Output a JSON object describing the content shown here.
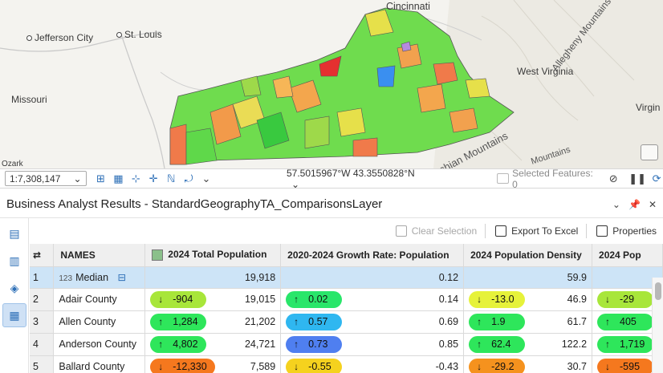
{
  "map": {
    "labels": {
      "cincinnati": "Cincinnati",
      "jefferson_city": "Jefferson City",
      "st_louis": "St. Louis",
      "missouri": "Missouri",
      "west_virginia": "West Virginia",
      "allegheny": "Allegheny Mountains",
      "virginia_partial": "Virgin",
      "appalachian_partial": "chian Mountains",
      "mountains_partial": "Mountains",
      "ozark_partial": "Ozark"
    }
  },
  "statusbar": {
    "scale": "1:7,308,147",
    "coordinates": "57.5015967°W 43.3550828°N",
    "selected_features": "Selected Features: 0"
  },
  "pane": {
    "title": "Business Analyst Results - StandardGeographyTA_ComparisonsLayer"
  },
  "toolbar": {
    "clear_selection": "Clear Selection",
    "export_excel": "Export To Excel",
    "properties": "Properties"
  },
  "table": {
    "headers": {
      "names": "NAMES",
      "total_pop": "2024 Total Population",
      "growth": "2020-2024 Growth Rate: Population",
      "density": "2024 Population Density",
      "partial": "2024 Pop"
    },
    "median": {
      "row": "1",
      "label": "Median",
      "total_pop": "19,918",
      "growth": "0.12",
      "density": "59.9"
    },
    "rows": [
      {
        "row": "2",
        "name": "Adair County",
        "pop_diff": "-904",
        "pop_dir": "↓",
        "pop_color": "#a8e63a",
        "total_pop": "19,015",
        "growth_diff": "0.02",
        "growth_dir": "↑",
        "growth_color": "#29e66a",
        "growth": "0.14",
        "dens_diff": "-13.0",
        "dens_dir": "↓",
        "dens_color": "#e6f23a",
        "density": "46.9",
        "p_diff": "-29",
        "p_dir": "↓",
        "p_color": "#a8e63a"
      },
      {
        "row": "3",
        "name": "Allen County",
        "pop_diff": "1,284",
        "pop_dir": "↑",
        "pop_color": "#2ee65b",
        "total_pop": "21,202",
        "growth_diff": "0.57",
        "growth_dir": "↑",
        "growth_color": "#2fb7f0",
        "growth": "0.69",
        "dens_diff": "1.9",
        "dens_dir": "↑",
        "dens_color": "#2ee65b",
        "density": "61.7",
        "p_diff": "405",
        "p_dir": "↑",
        "p_color": "#2ee65b"
      },
      {
        "row": "4",
        "name": "Anderson County",
        "pop_diff": "4,802",
        "pop_dir": "↑",
        "pop_color": "#2ee65b",
        "total_pop": "24,721",
        "growth_diff": "0.73",
        "growth_dir": "↑",
        "growth_color": "#4f7ff0",
        "growth": "0.85",
        "dens_diff": "62.4",
        "dens_dir": "↑",
        "dens_color": "#2ee65b",
        "density": "122.2",
        "p_diff": "1,719",
        "p_dir": "↑",
        "p_color": "#2ee65b"
      },
      {
        "row": "5",
        "name": "Ballard County",
        "pop_diff": "-12,330",
        "pop_dir": "↓",
        "pop_color": "#f5781e",
        "total_pop": "7,589",
        "growth_diff": "-0.55",
        "growth_dir": "↓",
        "growth_color": "#f5d21e",
        "growth": "-0.43",
        "dens_diff": "-29.2",
        "dens_dir": "↓",
        "dens_color": "#f5921e",
        "density": "30.7",
        "p_diff": "-595",
        "p_dir": "↓",
        "p_color": "#f5781e"
      }
    ]
  }
}
